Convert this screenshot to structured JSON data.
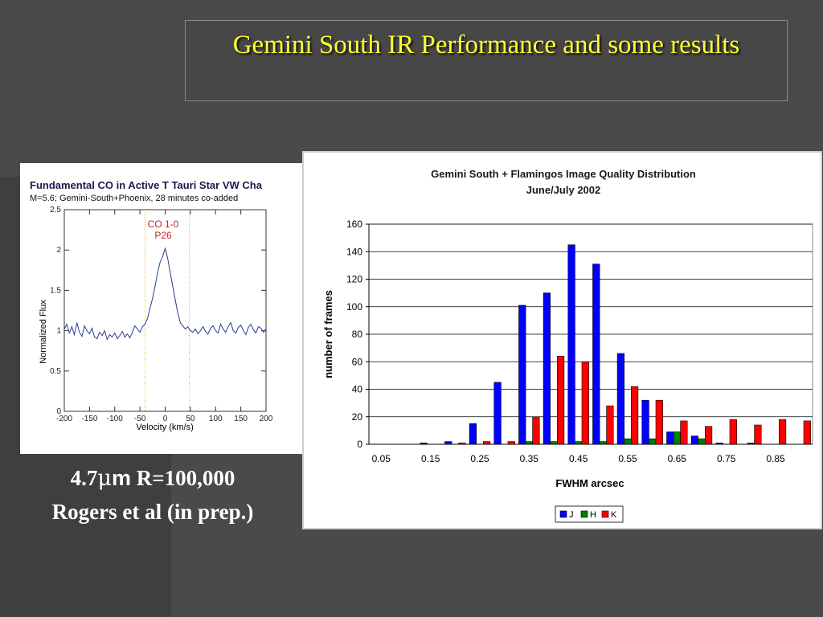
{
  "slide": {
    "title": "Gemini South IR Performance and some results",
    "caption_line1_prefix": "4.7",
    "caption_line1_mu": "μ",
    "caption_line1_m": "m",
    "caption_line1_suffix": " R=100,000",
    "caption_line2": "Rogers et al (in prep.)"
  },
  "chart_data": [
    {
      "type": "line",
      "title": "Fundamental CO in Active T Tauri Star VW Cha",
      "subtitle": "M=5.6; Gemini-South+Phoenix, 28 minutes co-added",
      "xlabel": "Velocity (km/s)",
      "ylabel": "Normalized Flux",
      "xlim": [
        -200,
        200
      ],
      "ylim": [
        0,
        2.5
      ],
      "xticks": [
        -200,
        -150,
        -100,
        -50,
        0,
        50,
        100,
        150,
        200
      ],
      "yticks": [
        0,
        0.5,
        1,
        1.5,
        2,
        2.5
      ],
      "line_color": "#2b3c8f",
      "marker_color": "#e8b400",
      "annotation": {
        "lines": [
          "CO 1-0",
          "P26"
        ],
        "color": "#cc2222"
      },
      "markers_x": [
        -40,
        48
      ],
      "x": [
        -200,
        -195,
        -190,
        -185,
        -180,
        -175,
        -170,
        -165,
        -160,
        -155,
        -150,
        -145,
        -140,
        -135,
        -130,
        -125,
        -120,
        -115,
        -110,
        -105,
        -100,
        -95,
        -90,
        -85,
        -80,
        -75,
        -70,
        -65,
        -60,
        -55,
        -50,
        -45,
        -40,
        -35,
        -30,
        -25,
        -20,
        -15,
        -10,
        -5,
        0,
        5,
        10,
        15,
        20,
        25,
        30,
        35,
        40,
        45,
        50,
        55,
        60,
        65,
        70,
        75,
        80,
        85,
        90,
        95,
        100,
        105,
        110,
        115,
        120,
        125,
        130,
        135,
        140,
        145,
        150,
        155,
        160,
        165,
        170,
        175,
        180,
        185,
        190,
        195,
        200
      ],
      "y": [
        1.02,
        1.08,
        0.97,
        1.05,
        0.95,
        1.1,
        0.98,
        0.93,
        1.06,
        1.0,
        0.96,
        1.03,
        0.92,
        0.9,
        0.98,
        0.94,
        1.0,
        0.89,
        0.95,
        0.92,
        0.97,
        0.9,
        0.94,
        0.99,
        0.92,
        0.96,
        0.91,
        0.98,
        1.06,
        1.02,
        0.98,
        1.05,
        1.08,
        1.15,
        1.28,
        1.4,
        1.55,
        1.72,
        1.85,
        1.92,
        2.02,
        1.9,
        1.72,
        1.55,
        1.38,
        1.22,
        1.1,
        1.06,
        1.02,
        1.05,
        1.0,
        0.98,
        1.02,
        0.96,
        1.0,
        1.05,
        0.99,
        0.96,
        1.03,
        1.06,
        1.0,
        0.97,
        1.08,
        1.02,
        0.98,
        1.05,
        1.1,
        1.0,
        0.97,
        1.04,
        1.07,
        1.0,
        0.95,
        1.04,
        1.08,
        1.01,
        0.97,
        1.05,
        1.03,
        0.98,
        1.02
      ]
    },
    {
      "type": "bar",
      "title": "Gemini South + Flamingos Image Quality Distribution",
      "subtitle": "June/July 2002",
      "xlabel": "FWHM arcsec",
      "ylabel": "number of frames",
      "ylim": [
        0,
        160
      ],
      "yticks": [
        0,
        20,
        40,
        60,
        80,
        100,
        120,
        140,
        160
      ],
      "categories": [
        "0.05",
        "0.1",
        "0.15",
        "0.2",
        "0.25",
        "0.3",
        "0.35",
        "0.4",
        "0.45",
        "0.5",
        "0.55",
        "0.6",
        "0.65",
        "0.7",
        "0.75",
        "0.8",
        "0.85",
        "0.9"
      ],
      "xtick_labels": [
        "0.05",
        "0.15",
        "0.25",
        "0.35",
        "0.45",
        "0.55",
        "0.65",
        "0.75",
        "0.85"
      ],
      "legend_position": "bottom",
      "grid": true,
      "series": [
        {
          "name": "J",
          "color": "#0000ff",
          "values": [
            0,
            0,
            1,
            2,
            15,
            45,
            101,
            110,
            145,
            131,
            66,
            32,
            9,
            6,
            1,
            0,
            0,
            0
          ]
        },
        {
          "name": "H",
          "color": "#008000",
          "values": [
            0,
            0,
            0,
            0,
            0,
            0,
            2,
            2,
            2,
            2,
            4,
            4,
            9,
            4,
            0,
            1,
            0,
            0
          ]
        },
        {
          "name": "K",
          "color": "#ff0000",
          "values": [
            0,
            0,
            0,
            1,
            2,
            2,
            20,
            64,
            60,
            28,
            42,
            32,
            17,
            13,
            18,
            14,
            18,
            17
          ]
        }
      ]
    }
  ]
}
